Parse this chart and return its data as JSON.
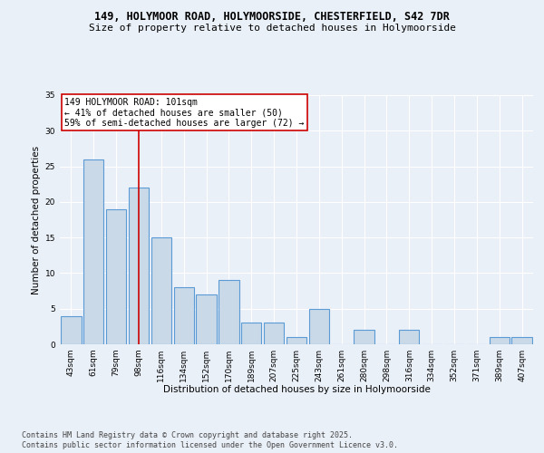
{
  "title_line1": "149, HOLYMOOR ROAD, HOLYMOORSIDE, CHESTERFIELD, S42 7DR",
  "title_line2": "Size of property relative to detached houses in Holymoorside",
  "xlabel": "Distribution of detached houses by size in Holymoorside",
  "ylabel": "Number of detached properties",
  "categories": [
    "43sqm",
    "61sqm",
    "79sqm",
    "98sqm",
    "116sqm",
    "134sqm",
    "152sqm",
    "170sqm",
    "189sqm",
    "207sqm",
    "225sqm",
    "243sqm",
    "261sqm",
    "280sqm",
    "298sqm",
    "316sqm",
    "334sqm",
    "352sqm",
    "371sqm",
    "389sqm",
    "407sqm"
  ],
  "values": [
    4,
    26,
    19,
    22,
    15,
    8,
    7,
    9,
    3,
    3,
    1,
    5,
    0,
    2,
    0,
    2,
    0,
    0,
    0,
    1,
    1
  ],
  "bar_color": "#c9d9e8",
  "bar_edge_color": "#5b9bd5",
  "bar_edge_width": 0.8,
  "vline_x_index": 3,
  "vline_color": "#cc0000",
  "annotation_text": "149 HOLYMOOR ROAD: 101sqm\n← 41% of detached houses are smaller (50)\n59% of semi-detached houses are larger (72) →",
  "annotation_box_color": "#ffffff",
  "annotation_border_color": "#cc0000",
  "ylim": [
    0,
    35
  ],
  "yticks": [
    0,
    5,
    10,
    15,
    20,
    25,
    30,
    35
  ],
  "footer_line1": "Contains HM Land Registry data © Crown copyright and database right 2025.",
  "footer_line2": "Contains public sector information licensed under the Open Government Licence v3.0.",
  "bg_color": "#eaf0f8",
  "plot_bg_color": "#eaf0f8",
  "grid_color": "#ffffff",
  "title_fontsize": 8.5,
  "subtitle_fontsize": 8,
  "axis_label_fontsize": 7.5,
  "tick_fontsize": 6.5,
  "annotation_fontsize": 7,
  "footer_fontsize": 6
}
